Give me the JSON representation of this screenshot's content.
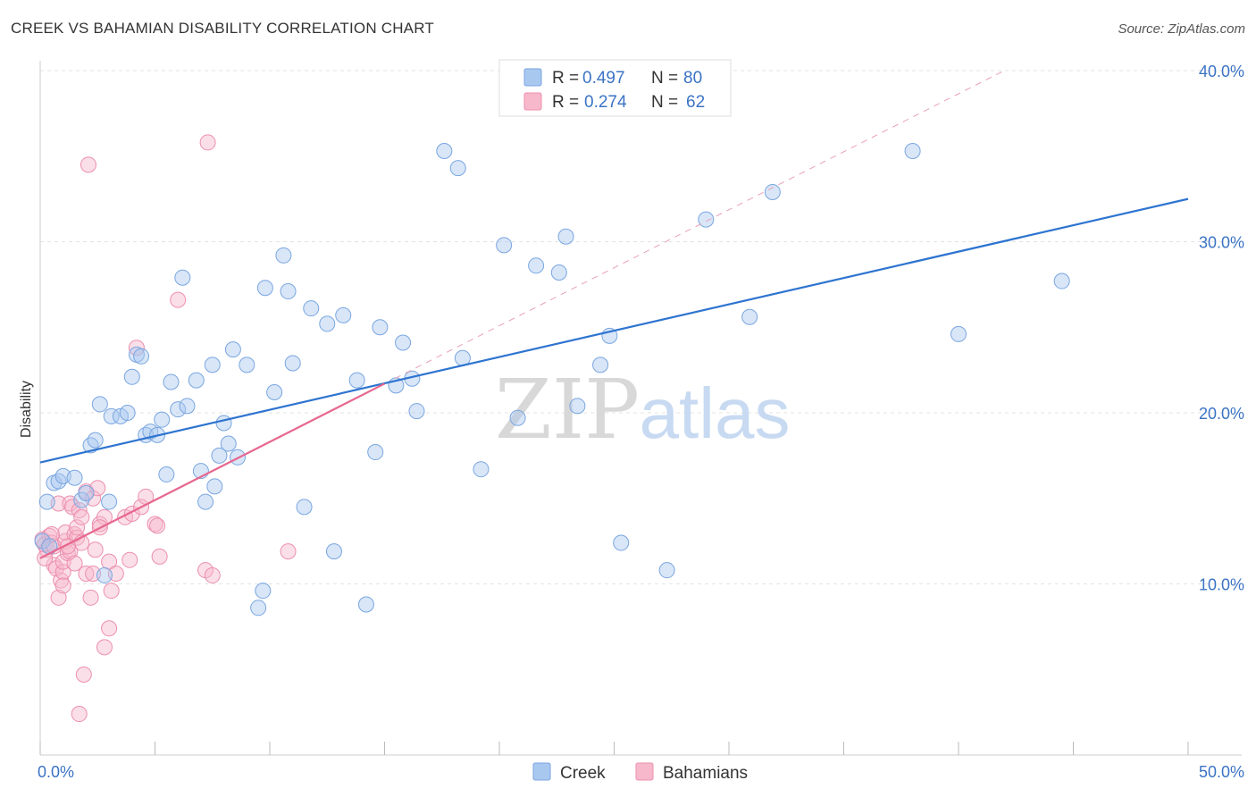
{
  "header": {
    "title": "CREEK VS BAHAMIAN DISABILITY CORRELATION CHART",
    "source": "Source: ZipAtlas.com"
  },
  "watermark": {
    "zip": "ZIP",
    "atlas": "atlas"
  },
  "stats_legend": [
    {
      "r_label": "R =",
      "r_value": "0.497",
      "n_label": "N =",
      "n_value": "80"
    },
    {
      "r_label": "R =",
      "r_value": "0.274",
      "n_label": "N =",
      "n_value": "62"
    }
  ],
  "colors": {
    "creek_fill": "#a9c8f0",
    "creek_stroke": "#7aa6e0",
    "creek_line": "#2e74d0",
    "bahamian_fill": "#f7b8cb",
    "bahamian_stroke": "#ec8fae",
    "bahamian_line": "#e7678f",
    "text_blue": "#3b73c4"
  },
  "chart_data": {
    "type": "scatter",
    "title": "CREEK VS BAHAMIAN DISABILITY CORRELATION CHART",
    "xlabel": "",
    "ylabel": "Disability",
    "xlim": [
      0,
      50
    ],
    "ylim": [
      0,
      40
    ],
    "x_tick_labels": [
      "0.0%",
      "50.0%"
    ],
    "y_ticks": [
      10,
      20,
      30,
      40
    ],
    "y_tick_labels": [
      "10.0%",
      "20.0%",
      "30.0%",
      "40.0%"
    ],
    "legend": [
      "Creek",
      "Bahamians"
    ],
    "series": [
      {
        "name": "Creek",
        "r": 0.497,
        "n": 80,
        "trend": {
          "x": [
            0,
            50
          ],
          "y": [
            17.1,
            32.5
          ]
        },
        "points": [
          [
            0.3,
            14.8
          ],
          [
            0.6,
            15.9
          ],
          [
            0.8,
            16.0
          ],
          [
            1.0,
            16.3
          ],
          [
            1.5,
            16.2
          ],
          [
            1.8,
            14.9
          ],
          [
            2.0,
            15.3
          ],
          [
            2.2,
            18.1
          ],
          [
            2.4,
            18.4
          ],
          [
            2.6,
            20.5
          ],
          [
            3.0,
            14.8
          ],
          [
            3.1,
            19.8
          ],
          [
            3.5,
            19.8
          ],
          [
            3.8,
            20.0
          ],
          [
            4.0,
            22.1
          ],
          [
            4.2,
            23.4
          ],
          [
            4.4,
            23.3
          ],
          [
            4.6,
            18.7
          ],
          [
            4.8,
            18.9
          ],
          [
            5.1,
            18.7
          ],
          [
            5.3,
            19.6
          ],
          [
            5.5,
            16.4
          ],
          [
            5.7,
            21.8
          ],
          [
            6.0,
            20.2
          ],
          [
            6.2,
            27.9
          ],
          [
            6.4,
            20.4
          ],
          [
            6.8,
            21.9
          ],
          [
            7.0,
            16.6
          ],
          [
            7.2,
            14.8
          ],
          [
            7.5,
            22.8
          ],
          [
            7.6,
            15.7
          ],
          [
            7.8,
            17.5
          ],
          [
            8.0,
            19.4
          ],
          [
            8.2,
            18.2
          ],
          [
            8.4,
            23.7
          ],
          [
            8.6,
            17.4
          ],
          [
            9.0,
            22.8
          ],
          [
            9.5,
            8.6
          ],
          [
            9.7,
            9.6
          ],
          [
            9.8,
            27.3
          ],
          [
            10.2,
            21.2
          ],
          [
            10.6,
            29.2
          ],
          [
            10.8,
            27.1
          ],
          [
            11.0,
            22.9
          ],
          [
            11.5,
            14.5
          ],
          [
            11.8,
            26.1
          ],
          [
            12.5,
            25.2
          ],
          [
            12.8,
            11.9
          ],
          [
            13.2,
            25.7
          ],
          [
            13.8,
            21.9
          ],
          [
            14.2,
            8.8
          ],
          [
            14.6,
            17.7
          ],
          [
            14.8,
            25.0
          ],
          [
            15.5,
            21.6
          ],
          [
            15.8,
            24.1
          ],
          [
            16.2,
            22.0
          ],
          [
            16.4,
            20.1
          ],
          [
            17.6,
            35.3
          ],
          [
            18.2,
            34.3
          ],
          [
            18.4,
            23.2
          ],
          [
            19.2,
            16.7
          ],
          [
            20.2,
            29.8
          ],
          [
            20.8,
            19.7
          ],
          [
            21.6,
            28.6
          ],
          [
            22.6,
            28.2
          ],
          [
            22.9,
            30.3
          ],
          [
            23.4,
            20.4
          ],
          [
            24.4,
            22.8
          ],
          [
            24.8,
            24.5
          ],
          [
            25.3,
            12.4
          ],
          [
            27.3,
            10.8
          ],
          [
            29.0,
            31.3
          ],
          [
            30.9,
            25.6
          ],
          [
            31.9,
            32.9
          ],
          [
            38.0,
            35.3
          ],
          [
            40.0,
            24.6
          ],
          [
            44.5,
            27.7
          ],
          [
            0.1,
            12.5
          ],
          [
            0.4,
            12.2
          ],
          [
            2.8,
            10.5
          ]
        ]
      },
      {
        "name": "Bahamians",
        "r": 0.274,
        "n": 62,
        "trend": {
          "x": [
            0,
            15
          ],
          "y": [
            11.5,
            21.7
          ]
        },
        "trend_extension": {
          "x": [
            15,
            42
          ],
          "y": [
            21.7,
            40
          ]
        },
        "points": [
          [
            0.1,
            12.6
          ],
          [
            0.2,
            12.3
          ],
          [
            0.3,
            12.0
          ],
          [
            0.4,
            12.8
          ],
          [
            0.5,
            12.4
          ],
          [
            0.6,
            11.1
          ],
          [
            0.6,
            12.2
          ],
          [
            0.7,
            10.9
          ],
          [
            0.8,
            9.2
          ],
          [
            0.8,
            14.7
          ],
          [
            0.9,
            10.2
          ],
          [
            1.0,
            10.7
          ],
          [
            1.0,
            11.3
          ],
          [
            1.1,
            12.5
          ],
          [
            1.1,
            13.0
          ],
          [
            1.2,
            11.8
          ],
          [
            1.3,
            11.9
          ],
          [
            1.3,
            14.7
          ],
          [
            1.4,
            14.5
          ],
          [
            1.5,
            12.9
          ],
          [
            1.5,
            11.2
          ],
          [
            1.6,
            12.7
          ],
          [
            1.6,
            13.3
          ],
          [
            1.7,
            14.3
          ],
          [
            1.8,
            13.9
          ],
          [
            1.8,
            12.4
          ],
          [
            1.9,
            4.7
          ],
          [
            2.0,
            10.6
          ],
          [
            2.0,
            15.4
          ],
          [
            2.1,
            34.5
          ],
          [
            2.2,
            9.2
          ],
          [
            2.3,
            10.6
          ],
          [
            2.3,
            15.0
          ],
          [
            2.4,
            12.0
          ],
          [
            2.5,
            15.6
          ],
          [
            2.6,
            13.5
          ],
          [
            2.8,
            6.3
          ],
          [
            2.8,
            13.9
          ],
          [
            3.0,
            7.4
          ],
          [
            3.0,
            11.3
          ],
          [
            3.1,
            9.6
          ],
          [
            3.3,
            10.6
          ],
          [
            3.7,
            13.9
          ],
          [
            3.9,
            11.4
          ],
          [
            4.0,
            14.1
          ],
          [
            4.2,
            23.8
          ],
          [
            4.4,
            14.5
          ],
          [
            4.6,
            15.1
          ],
          [
            5.0,
            13.5
          ],
          [
            5.1,
            13.4
          ],
          [
            5.2,
            11.6
          ],
          [
            6.0,
            26.6
          ],
          [
            7.2,
            10.8
          ],
          [
            7.3,
            35.8
          ],
          [
            7.5,
            10.5
          ],
          [
            10.8,
            11.9
          ],
          [
            0.2,
            11.5
          ],
          [
            0.5,
            12.9
          ],
          [
            1.0,
            9.9
          ],
          [
            1.7,
            2.4
          ],
          [
            2.6,
            13.3
          ],
          [
            1.2,
            12.2
          ]
        ]
      }
    ]
  }
}
